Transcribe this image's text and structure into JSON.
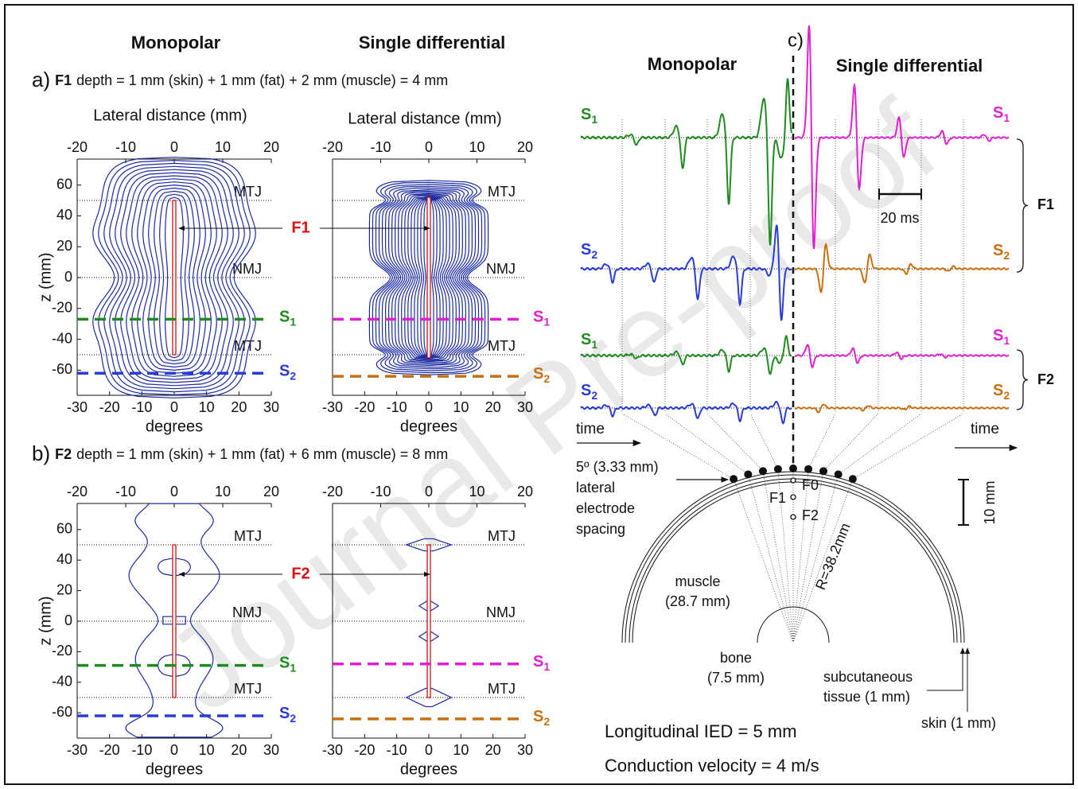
{
  "watermark": "Journal Pre-proof",
  "headers": {
    "monopolar": "Monopolar",
    "single_differential": "Single differential"
  },
  "axes": {
    "top_label": "Lateral distance (mm)",
    "bottom_label": "degrees",
    "y_label": "z (mm)",
    "top_ticks": [
      -20,
      -10,
      0,
      10,
      20
    ],
    "bottom_ticks": [
      -30,
      -20,
      -10,
      0,
      10,
      20,
      30
    ],
    "y_ticks": [
      60,
      40,
      20,
      0,
      -20,
      -40,
      -60
    ]
  },
  "lines": {
    "mtj": "MTJ",
    "nmj": "NMJ"
  },
  "sensor": {
    "s": "S",
    "one": "1",
    "two": "2"
  },
  "panel_a": {
    "label": "a)",
    "fiber": "F1",
    "description": "depth  = 1 mm (skin) + 1 mm (fat) + 2 mm (muscle) = 4 mm"
  },
  "panel_b": {
    "label": "b)",
    "fiber": "F2",
    "description": "depth  = 1 mm (skin) + 1 mm (fat) + 6 mm (muscle) = 8 mm"
  },
  "panel_c": {
    "label": "c)",
    "fiber_1": "F1",
    "fiber_2": "F2",
    "time_scale": "20 ms",
    "time": "time",
    "spacing": [
      "5º (3.33 mm)",
      "lateral",
      "electrode",
      "spacing"
    ],
    "fiber_points": [
      "F0",
      "F1",
      "F2"
    ],
    "radius": "R=38.2mm",
    "length_scale": "10 mm",
    "muscle": [
      "muscle",
      "(28.7 mm)"
    ],
    "bone": [
      "bone",
      "(7.5 mm)"
    ],
    "subcutaneous": [
      "subcutaneous",
      "tissue (1 mm)"
    ],
    "skin": "skin (1 mm)",
    "ied": "Longitudinal IED = 5 mm",
    "velocity": "Conduction velocity = 4 m/s"
  }
}
